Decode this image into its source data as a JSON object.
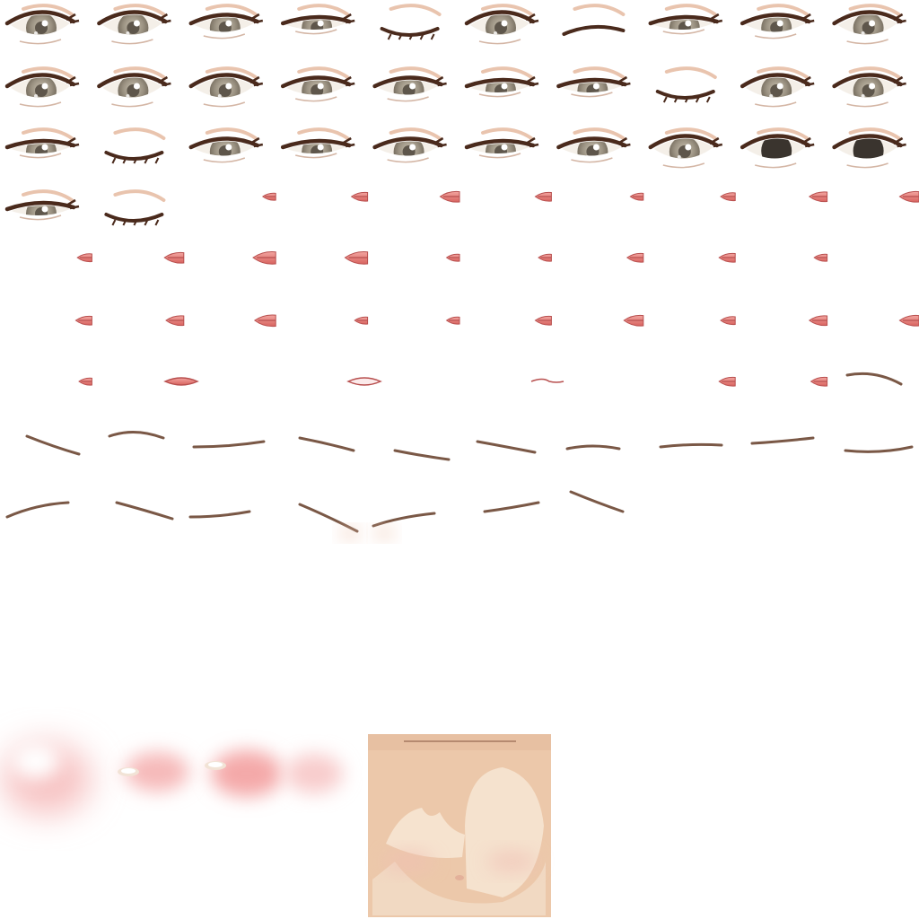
{
  "atlas": {
    "description_hidden": "",
    "colors": {
      "background": "#ffffff",
      "iris_outer": "#8f8676",
      "iris_inner": "#b8b0a0",
      "pupil": "#3a342e",
      "lash": "#4a2a1c",
      "lid_crease": "#e3b59a",
      "sclera": "#f4efe8",
      "lip": "#e07a7a",
      "lip_dark": "#b8504f",
      "lip_light": "#f2b3ad",
      "brow": "#7a5846",
      "blush": "#f4b5b5",
      "skin_base": "#ebc4a6",
      "skin_light": "#f3e0cb",
      "skin_shadow": "#d9a98a"
    },
    "eye_sprites": [
      {
        "kind": "open"
      },
      {
        "kind": "open"
      },
      {
        "kind": "half"
      },
      {
        "kind": "narrow"
      },
      {
        "kind": "closed"
      },
      {
        "kind": "open"
      },
      {
        "kind": "wink"
      },
      {
        "kind": "narrow"
      },
      {
        "kind": "half"
      },
      {
        "kind": "open"
      },
      {
        "kind": "open"
      },
      {
        "kind": "open"
      },
      {
        "kind": "open"
      },
      {
        "kind": "half"
      },
      {
        "kind": "half"
      },
      {
        "kind": "narrow"
      },
      {
        "kind": "narrow"
      },
      {
        "kind": "closed"
      },
      {
        "kind": "open"
      },
      {
        "kind": "open"
      },
      {
        "kind": "narrow"
      },
      {
        "kind": "closed"
      },
      {
        "kind": "half"
      },
      {
        "kind": "narrow"
      },
      {
        "kind": "half"
      },
      {
        "kind": "narrow"
      },
      {
        "kind": "half"
      },
      {
        "kind": "open"
      },
      {
        "kind": "dark"
      },
      {
        "kind": "dark"
      },
      {
        "kind": "narrow"
      },
      {
        "kind": "closed"
      }
    ],
    "mouth_sprites_count": 38,
    "brow_sprites_count": 17,
    "blush_sprites_count": 4,
    "icon_names": [
      "eye-sprite",
      "mouth-sprite",
      "brow-sprite",
      "blush-sprite",
      "skin-swatch"
    ]
  }
}
